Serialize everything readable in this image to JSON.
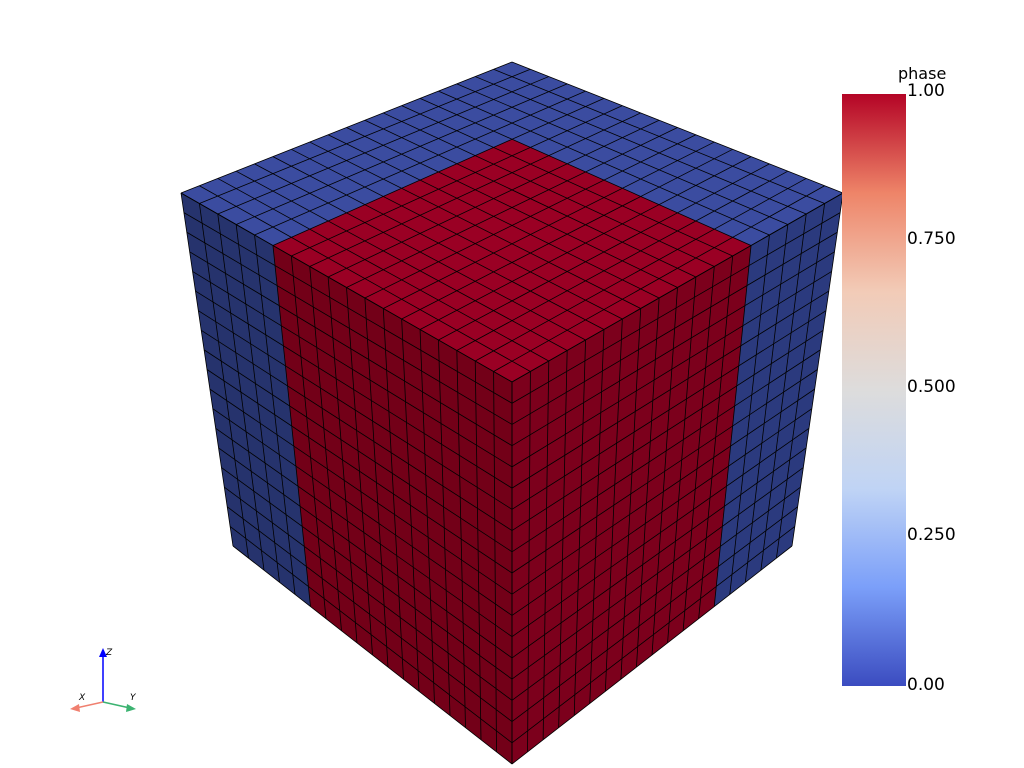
{
  "scene": {
    "object_icon": "cube-mesh",
    "grid_divisions": 18,
    "colors": {
      "background": "#ffffff",
      "phase0_top": "#3b4ca0",
      "phase0_side_left": "#26336d",
      "phase0_side_right": "#2b3a7e",
      "phase1_top": "#9a0024",
      "phase1_side_left": "#730018",
      "phase1_side_right": "#7c001c",
      "edge": "#000000"
    }
  },
  "colorbar": {
    "title": "phase",
    "ticks": [
      "1.00",
      "0.750",
      "0.500",
      "0.250",
      "0.00"
    ],
    "colormap": "coolwarm",
    "stops": [
      "#3b4cc0",
      "#7b9ff9",
      "#c0d4f5",
      "#dddcdc",
      "#f2cbb7",
      "#ee8468",
      "#b40426"
    ]
  },
  "axes": {
    "x_label": "X",
    "y_label": "Y",
    "z_label": "Z",
    "colors": {
      "x": "#f08070",
      "y": "#3cb371",
      "z": "#0000ff"
    }
  }
}
